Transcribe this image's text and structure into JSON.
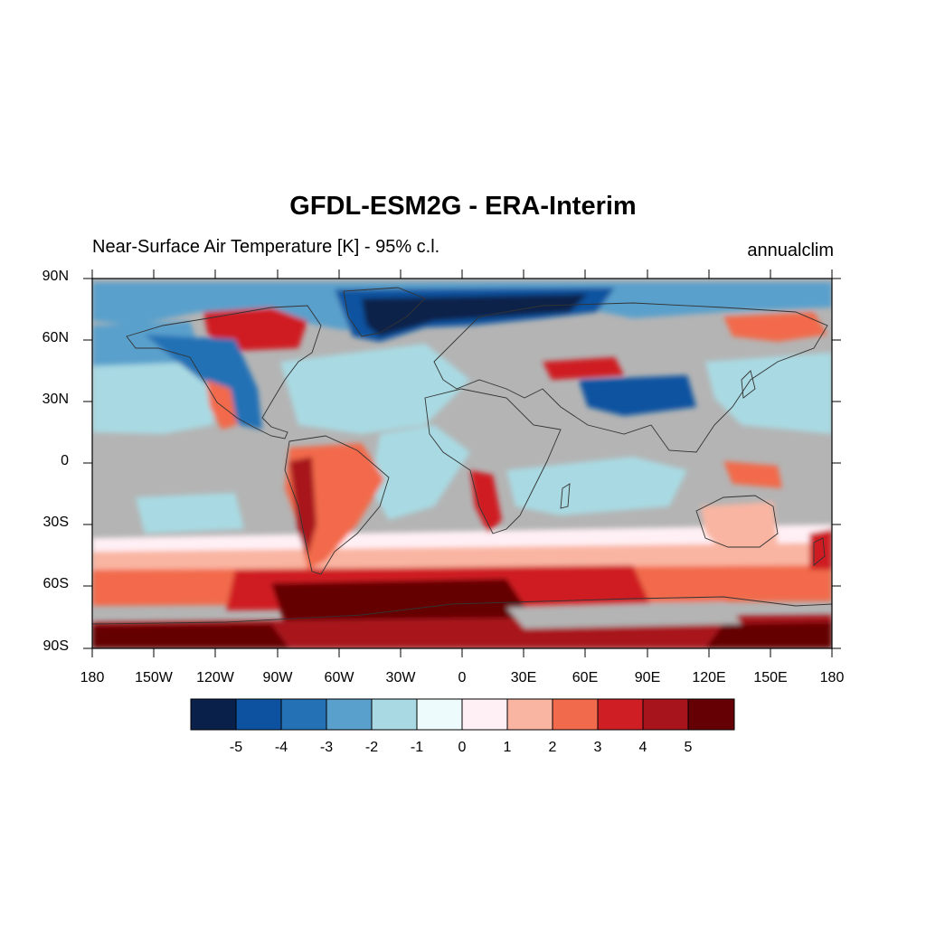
{
  "map": {
    "title": "GFDL-ESM2G - ERA-Interim",
    "subtitle_left": "Near-Surface Air Temperature [K] - 95% c.l.",
    "subtitle_right": "annualclim",
    "projection": "cylindrical equidistant",
    "extent": {
      "lon": [
        -180,
        180
      ],
      "lat": [
        -90,
        90
      ]
    },
    "lat_labels": [
      "90N",
      "60N",
      "30N",
      "0",
      "30S",
      "60S",
      "90S"
    ],
    "lon_labels": [
      "180",
      "150W",
      "120W",
      "90W",
      "60W",
      "30W",
      "0",
      "30E",
      "60E",
      "90E",
      "120E",
      "150E",
      "180"
    ],
    "land_mask_color": "#b4b4b4"
  },
  "colorbar": {
    "levels": [
      "-5",
      "-4",
      "-3",
      "-2",
      "-1",
      "0",
      "1",
      "2",
      "3",
      "4",
      "5"
    ],
    "colors": [
      "#08204a",
      "#0c52a0",
      "#2471b5",
      "#5aa0cc",
      "#a9dae3",
      "#edfbfd",
      "#fff0f5",
      "#f9b5a2",
      "#f26a4c",
      "#cf1f24",
      "#a8141b",
      "#650004"
    ]
  }
}
